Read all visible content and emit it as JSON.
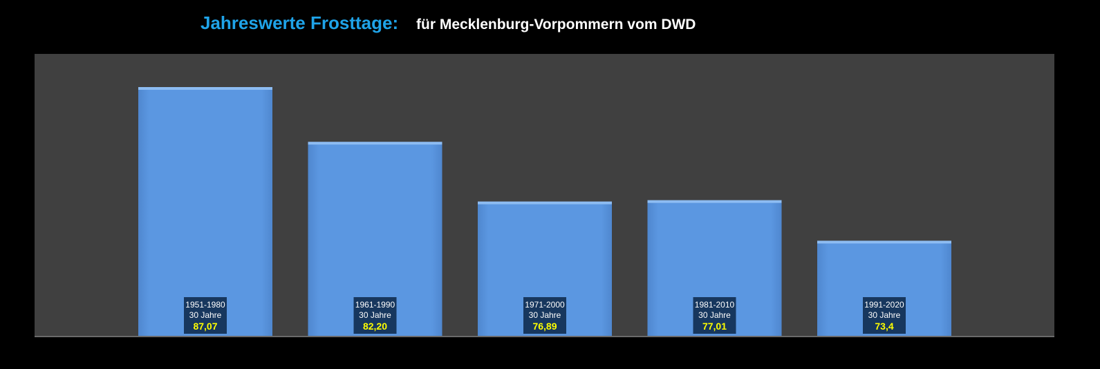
{
  "title": {
    "main": "Jahreswerte Frosttage:",
    "sub": "für Mecklenburg-Vorpommern vom DWD"
  },
  "colors": {
    "background": "#000000",
    "plot_background": "#404040",
    "bar_fill": "#5b97e1",
    "bar_top": "#8dbcf2",
    "label_box": "#17375e",
    "label_text": "#ffffff",
    "value_text": "#ffff00",
    "title_main": "#1fa3e8",
    "title_sub": "#ffffff"
  },
  "chart_data": {
    "type": "bar",
    "title": "Jahreswerte Frosttage: für Mecklenburg-Vorpommern vom DWD",
    "xlabel": "",
    "ylabel": "",
    "categories": [
      "1951-1980",
      "1961-1990",
      "1971-2000",
      "1981-2010",
      "1991-2020"
    ],
    "values": [
      87.07,
      82.2,
      76.89,
      77.01,
      73.4
    ],
    "period_labels": [
      "30 Jahre",
      "30 Jahre",
      "30 Jahre",
      "30 Jahre",
      "30 Jahre"
    ],
    "value_labels": [
      "87,07",
      "82,20",
      "76,89",
      "77,01",
      "73,4"
    ],
    "ylim": [
      65,
      90
    ],
    "grid": false,
    "legend": "none"
  }
}
